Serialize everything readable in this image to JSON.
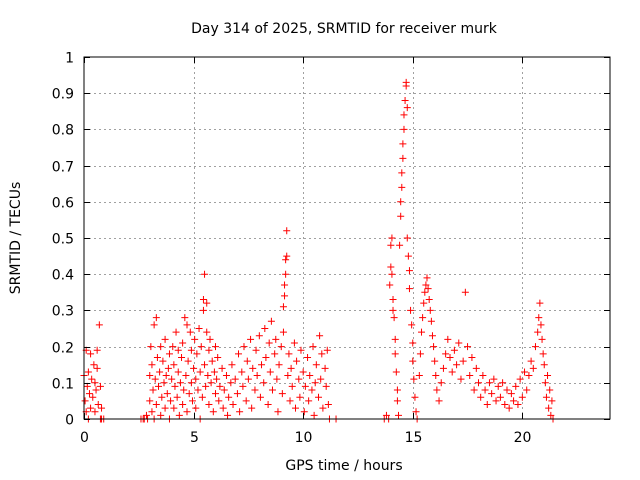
{
  "chart_data": {
    "type": "scatter",
    "title": "Day 314 of 2025, SRMTID for receiver murk",
    "xlabel": "GPS time / hours",
    "ylabel": "SRMTID / TECUs",
    "xlim": [
      0,
      24
    ],
    "ylim": [
      0,
      1
    ],
    "xticks": [
      0,
      5,
      10,
      15,
      20
    ],
    "xtick_labels": [
      "0",
      "5",
      "10",
      "15",
      "20"
    ],
    "yticks": [
      0,
      0.1,
      0.2,
      0.3,
      0.4,
      0.5,
      0.6,
      0.7,
      0.8,
      0.9,
      1
    ],
    "ytick_labels": [
      "0",
      "0.1",
      "0.2",
      "0.3",
      "0.4",
      "0.5",
      "0.6",
      "0.7",
      "0.8",
      "0.9",
      "1"
    ],
    "grid": true,
    "marker": "+",
    "series": [
      {
        "name": "SRMTID",
        "color": "#ff0000",
        "points": [
          [
            0.0,
            0.12
          ],
          [
            0.05,
            0.05
          ],
          [
            0.1,
            0.19
          ],
          [
            0.1,
            0.02
          ],
          [
            0.15,
            0.09
          ],
          [
            0.2,
            0.13
          ],
          [
            0.2,
            0.0
          ],
          [
            0.25,
            0.07
          ],
          [
            0.3,
            0.18
          ],
          [
            0.3,
            0.03
          ],
          [
            0.35,
            0.11
          ],
          [
            0.4,
            0.06
          ],
          [
            0.45,
            0.15
          ],
          [
            0.5,
            0.02
          ],
          [
            0.5,
            0.1
          ],
          [
            0.55,
            0.08
          ],
          [
            0.6,
            0.14
          ],
          [
            0.6,
            0.19
          ],
          [
            0.65,
            0.04
          ],
          [
            0.7,
            0.26
          ],
          [
            0.75,
            0.09
          ],
          [
            0.75,
            0.0
          ],
          [
            0.8,
            0.03
          ],
          [
            0.8,
            0.0
          ],
          [
            0.9,
            0.0
          ],
          [
            2.6,
            0.0
          ],
          [
            2.7,
            0.0
          ],
          [
            2.75,
            0.0
          ],
          [
            2.85,
            0.01
          ],
          [
            2.9,
            0.0
          ],
          [
            3.0,
            0.05
          ],
          [
            3.0,
            0.12
          ],
          [
            3.05,
            0.2
          ],
          [
            3.1,
            0.02
          ],
          [
            3.1,
            0.15
          ],
          [
            3.15,
            0.08
          ],
          [
            3.2,
            0.0
          ],
          [
            3.2,
            0.26
          ],
          [
            3.25,
            0.11
          ],
          [
            3.3,
            0.28
          ],
          [
            3.3,
            0.04
          ],
          [
            3.35,
            0.17
          ],
          [
            3.4,
            0.09
          ],
          [
            3.45,
            0.13
          ],
          [
            3.5,
            0.01
          ],
          [
            3.5,
            0.2
          ],
          [
            3.55,
            0.06
          ],
          [
            3.6,
            0.16
          ],
          [
            3.65,
            0.1
          ],
          [
            3.7,
            0.03
          ],
          [
            3.7,
            0.22
          ],
          [
            3.75,
            0.12
          ],
          [
            3.8,
            0.07
          ],
          [
            3.85,
            0.14
          ],
          [
            3.9,
            0.0
          ],
          [
            3.9,
            0.18
          ],
          [
            3.95,
            0.05
          ],
          [
            4.0,
            0.11
          ],
          [
            4.05,
            0.2
          ],
          [
            4.1,
            0.03
          ],
          [
            4.1,
            0.15
          ],
          [
            4.15,
            0.09
          ],
          [
            4.2,
            0.24
          ],
          [
            4.25,
            0.06
          ],
          [
            4.3,
            0.13
          ],
          [
            4.3,
            0.19
          ],
          [
            4.35,
            0.01
          ],
          [
            4.4,
            0.1
          ],
          [
            4.45,
            0.17
          ],
          [
            4.5,
            0.04
          ],
          [
            4.5,
            0.21
          ],
          [
            4.55,
            0.08
          ],
          [
            4.6,
            0.28
          ],
          [
            4.65,
            0.12
          ],
          [
            4.7,
            0.26
          ],
          [
            4.7,
            0.02
          ],
          [
            4.75,
            0.16
          ],
          [
            4.8,
            0.07
          ],
          [
            4.85,
            0.24
          ],
          [
            4.9,
            0.1
          ],
          [
            4.9,
            0.19
          ],
          [
            4.95,
            0.05
          ],
          [
            5.0,
            0.14
          ],
          [
            5.05,
            0.22
          ],
          [
            5.1,
            0.03
          ],
          [
            5.1,
            0.11
          ],
          [
            5.15,
            0.18
          ],
          [
            5.2,
            0.08
          ],
          [
            5.25,
            0.25
          ],
          [
            5.3,
            0.13
          ],
          [
            5.3,
            0.0
          ],
          [
            5.35,
            0.2
          ],
          [
            5.4,
            0.06
          ],
          [
            5.45,
            0.3
          ],
          [
            5.45,
            0.33
          ],
          [
            5.5,
            0.15
          ],
          [
            5.5,
            0.4
          ],
          [
            5.55,
            0.09
          ],
          [
            5.6,
            0.24
          ],
          [
            5.6,
            0.32
          ],
          [
            5.65,
            0.12
          ],
          [
            5.7,
            0.04
          ],
          [
            5.7,
            0.19
          ],
          [
            5.75,
            0.22
          ],
          [
            5.8,
            0.1
          ],
          [
            5.85,
            0.16
          ],
          [
            5.9,
            0.02
          ],
          [
            5.95,
            0.13
          ],
          [
            6.0,
            0.2
          ],
          [
            6.0,
            0.07
          ],
          [
            6.05,
            0.11
          ],
          [
            6.1,
            0.17
          ],
          [
            6.15,
            0.05
          ],
          [
            6.2,
            0.09
          ],
          [
            6.3,
            0.14
          ],
          [
            6.35,
            0.03
          ],
          [
            6.4,
            0.08
          ],
          [
            6.5,
            0.12
          ],
          [
            6.55,
            0.01
          ],
          [
            6.6,
            0.06
          ],
          [
            6.7,
            0.1
          ],
          [
            6.75,
            0.15
          ],
          [
            6.8,
            0.04
          ],
          [
            6.9,
            0.11
          ],
          [
            7.0,
            0.07
          ],
          [
            7.05,
            0.18
          ],
          [
            7.1,
            0.02
          ],
          [
            7.2,
            0.13
          ],
          [
            7.25,
            0.09
          ],
          [
            7.3,
            0.2
          ],
          [
            7.4,
            0.05
          ],
          [
            7.45,
            0.16
          ],
          [
            7.5,
            0.11
          ],
          [
            7.6,
            0.22
          ],
          [
            7.65,
            0.03
          ],
          [
            7.7,
            0.14
          ],
          [
            7.8,
            0.08
          ],
          [
            7.85,
            0.19
          ],
          [
            7.9,
            0.12
          ],
          [
            8.0,
            0.23
          ],
          [
            8.05,
            0.06
          ],
          [
            8.1,
            0.15
          ],
          [
            8.2,
            0.1
          ],
          [
            8.25,
            0.25
          ],
          [
            8.3,
            0.17
          ],
          [
            8.4,
            0.04
          ],
          [
            8.45,
            0.21
          ],
          [
            8.5,
            0.13
          ],
          [
            8.55,
            0.27
          ],
          [
            8.6,
            0.08
          ],
          [
            8.7,
            0.18
          ],
          [
            8.75,
            0.22
          ],
          [
            8.8,
            0.11
          ],
          [
            8.85,
            0.02
          ],
          [
            8.9,
            0.15
          ],
          [
            9.0,
            0.2
          ],
          [
            9.05,
            0.07
          ],
          [
            9.1,
            0.24
          ],
          [
            9.1,
            0.31
          ],
          [
            9.15,
            0.34
          ],
          [
            9.15,
            0.37
          ],
          [
            9.2,
            0.4
          ],
          [
            9.2,
            0.44
          ],
          [
            9.25,
            0.45
          ],
          [
            9.25,
            0.52
          ],
          [
            9.3,
            0.12
          ],
          [
            9.35,
            0.18
          ],
          [
            9.4,
            0.05
          ],
          [
            9.45,
            0.14
          ],
          [
            9.5,
            0.09
          ],
          [
            9.6,
            0.21
          ],
          [
            9.65,
            0.03
          ],
          [
            9.7,
            0.16
          ],
          [
            9.8,
            0.11
          ],
          [
            9.85,
            0.06
          ],
          [
            9.9,
            0.19
          ],
          [
            10.0,
            0.13
          ],
          [
            10.05,
            0.02
          ],
          [
            10.1,
            0.09
          ],
          [
            10.2,
            0.17
          ],
          [
            10.25,
            0.05
          ],
          [
            10.3,
            0.12
          ],
          [
            10.4,
            0.08
          ],
          [
            10.45,
            0.2
          ],
          [
            10.5,
            0.01
          ],
          [
            10.55,
            0.1
          ],
          [
            10.6,
            0.15
          ],
          [
            10.7,
            0.06
          ],
          [
            10.75,
            0.23
          ],
          [
            10.8,
            0.11
          ],
          [
            10.85,
            0.18
          ],
          [
            10.9,
            0.03
          ],
          [
            11.0,
            0.14
          ],
          [
            11.05,
            0.09
          ],
          [
            11.1,
            0.19
          ],
          [
            11.15,
            0.04
          ],
          [
            11.2,
            0.0
          ],
          [
            11.5,
            0.0
          ],
          [
            13.7,
            0.0
          ],
          [
            13.8,
            0.01
          ],
          [
            13.9,
            0.0
          ],
          [
            13.95,
            0.37
          ],
          [
            14.0,
            0.42
          ],
          [
            14.0,
            0.48
          ],
          [
            14.05,
            0.5
          ],
          [
            14.05,
            0.4
          ],
          [
            14.1,
            0.33
          ],
          [
            14.1,
            0.3
          ],
          [
            14.15,
            0.28
          ],
          [
            14.2,
            0.22
          ],
          [
            14.2,
            0.18
          ],
          [
            14.25,
            0.13
          ],
          [
            14.3,
            0.08
          ],
          [
            14.3,
            0.05
          ],
          [
            14.35,
            0.01
          ],
          [
            14.4,
            0.48
          ],
          [
            14.45,
            0.56
          ],
          [
            14.45,
            0.6
          ],
          [
            14.5,
            0.64
          ],
          [
            14.5,
            0.68
          ],
          [
            14.55,
            0.72
          ],
          [
            14.55,
            0.76
          ],
          [
            14.6,
            0.8
          ],
          [
            14.6,
            0.84
          ],
          [
            14.65,
            0.88
          ],
          [
            14.7,
            0.92
          ],
          [
            14.7,
            0.93
          ],
          [
            14.75,
            0.86
          ],
          [
            14.75,
            0.5
          ],
          [
            14.8,
            0.45
          ],
          [
            14.85,
            0.41
          ],
          [
            14.85,
            0.36
          ],
          [
            14.9,
            0.3
          ],
          [
            14.95,
            0.26
          ],
          [
            15.0,
            0.21
          ],
          [
            15.0,
            0.16
          ],
          [
            15.05,
            0.11
          ],
          [
            15.1,
            0.06
          ],
          [
            15.15,
            0.02
          ],
          [
            15.2,
            0.0
          ],
          [
            15.3,
            0.12
          ],
          [
            15.35,
            0.18
          ],
          [
            15.4,
            0.24
          ],
          [
            15.45,
            0.28
          ],
          [
            15.5,
            0.32
          ],
          [
            15.55,
            0.35
          ],
          [
            15.6,
            0.37
          ],
          [
            15.65,
            0.39
          ],
          [
            15.7,
            0.36
          ],
          [
            15.75,
            0.33
          ],
          [
            15.8,
            0.3
          ],
          [
            15.85,
            0.27
          ],
          [
            15.9,
            0.23
          ],
          [
            15.95,
            0.2
          ],
          [
            16.0,
            0.16
          ],
          [
            16.05,
            0.12
          ],
          [
            16.1,
            0.08
          ],
          [
            16.2,
            0.05
          ],
          [
            16.3,
            0.1
          ],
          [
            16.4,
            0.14
          ],
          [
            16.5,
            0.18
          ],
          [
            16.6,
            0.22
          ],
          [
            16.7,
            0.17
          ],
          [
            16.8,
            0.13
          ],
          [
            16.9,
            0.19
          ],
          [
            17.0,
            0.15
          ],
          [
            17.1,
            0.21
          ],
          [
            17.2,
            0.11
          ],
          [
            17.3,
            0.16
          ],
          [
            17.4,
            0.35
          ],
          [
            17.5,
            0.2
          ],
          [
            17.6,
            0.12
          ],
          [
            17.7,
            0.17
          ],
          [
            17.8,
            0.08
          ],
          [
            17.9,
            0.14
          ],
          [
            18.0,
            0.1
          ],
          [
            18.1,
            0.06
          ],
          [
            18.2,
            0.12
          ],
          [
            18.3,
            0.08
          ],
          [
            18.4,
            0.04
          ],
          [
            18.5,
            0.1
          ],
          [
            18.6,
            0.07
          ],
          [
            18.7,
            0.11
          ],
          [
            18.8,
            0.05
          ],
          [
            18.9,
            0.09
          ],
          [
            19.0,
            0.06
          ],
          [
            19.1,
            0.1
          ],
          [
            19.2,
            0.04
          ],
          [
            19.3,
            0.08
          ],
          [
            19.4,
            0.03
          ],
          [
            19.5,
            0.07
          ],
          [
            19.6,
            0.05
          ],
          [
            19.7,
            0.09
          ],
          [
            19.8,
            0.04
          ],
          [
            19.9,
            0.11
          ],
          [
            20.0,
            0.06
          ],
          [
            20.1,
            0.13
          ],
          [
            20.2,
            0.08
          ],
          [
            20.3,
            0.12
          ],
          [
            20.4,
            0.16
          ],
          [
            20.5,
            0.14
          ],
          [
            20.6,
            0.2
          ],
          [
            20.7,
            0.24
          ],
          [
            20.75,
            0.28
          ],
          [
            20.8,
            0.32
          ],
          [
            20.85,
            0.26
          ],
          [
            20.9,
            0.22
          ],
          [
            20.95,
            0.18
          ],
          [
            21.0,
            0.15
          ],
          [
            21.05,
            0.1
          ],
          [
            21.1,
            0.06
          ],
          [
            21.15,
            0.12
          ],
          [
            21.2,
            0.03
          ],
          [
            21.25,
            0.08
          ],
          [
            21.3,
            0.01
          ],
          [
            21.35,
            0.05
          ],
          [
            21.4,
            0.0
          ]
        ]
      }
    ]
  }
}
